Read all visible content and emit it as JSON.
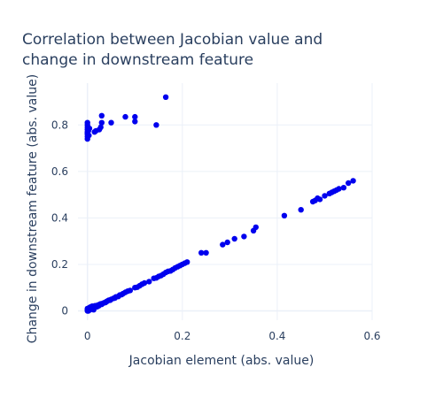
{
  "chart_data": {
    "type": "scatter",
    "title_lines": [
      "Correlation between Jacobian value and",
      "change in downstream feature"
    ],
    "xlabel": "Jacobian element (abs. value)",
    "ylabel": "Change in downstream feature (abs. value)",
    "xlim": [
      -0.02,
      0.6
    ],
    "ylim": [
      -0.04,
      0.98
    ],
    "xticks": [
      0,
      0.2,
      0.4,
      0.6
    ],
    "xtick_labels": [
      "0",
      "0.2",
      "0.4",
      "0.6"
    ],
    "yticks": [
      0,
      0.2,
      0.4,
      0.6,
      0.8
    ],
    "ytick_labels": [
      "0",
      "0.2",
      "0.4",
      "0.6",
      "0.8"
    ],
    "grid": true,
    "marker_color": "#0000ee",
    "grid_color": "#ebf0f8",
    "points": [
      [
        0.0,
        0.0
      ],
      [
        0.0,
        0.005
      ],
      [
        0.0,
        0.01
      ],
      [
        0.002,
        0.0
      ],
      [
        0.003,
        0.012
      ],
      [
        0.005,
        0.004
      ],
      [
        0.005,
        0.015
      ],
      [
        0.007,
        0.008
      ],
      [
        0.008,
        0.018
      ],
      [
        0.01,
        0.01
      ],
      [
        0.01,
        0.02
      ],
      [
        0.012,
        0.014
      ],
      [
        0.013,
        0.005
      ],
      [
        0.015,
        0.016
      ],
      [
        0.016,
        0.022
      ],
      [
        0.018,
        0.02
      ],
      [
        0.02,
        0.018
      ],
      [
        0.022,
        0.025
      ],
      [
        0.024,
        0.022
      ],
      [
        0.026,
        0.028
      ],
      [
        0.028,
        0.03
      ],
      [
        0.03,
        0.028
      ],
      [
        0.032,
        0.032
      ],
      [
        0.035,
        0.035
      ],
      [
        0.038,
        0.036
      ],
      [
        0.04,
        0.04
      ],
      [
        0.042,
        0.042
      ],
      [
        0.045,
        0.046
      ],
      [
        0.048,
        0.046
      ],
      [
        0.05,
        0.05
      ],
      [
        0.055,
        0.054
      ],
      [
        0.058,
        0.056
      ],
      [
        0.06,
        0.06
      ],
      [
        0.065,
        0.062
      ],
      [
        0.068,
        0.068
      ],
      [
        0.072,
        0.07
      ],
      [
        0.075,
        0.074
      ],
      [
        0.08,
        0.08
      ],
      [
        0.085,
        0.085
      ],
      [
        0.09,
        0.088
      ],
      [
        0.1,
        0.1
      ],
      [
        0.105,
        0.102
      ],
      [
        0.11,
        0.108
      ],
      [
        0.115,
        0.115
      ],
      [
        0.12,
        0.12
      ],
      [
        0.13,
        0.126
      ],
      [
        0.14,
        0.14
      ],
      [
        0.145,
        0.142
      ],
      [
        0.15,
        0.148
      ],
      [
        0.155,
        0.152
      ],
      [
        0.16,
        0.158
      ],
      [
        0.165,
        0.165
      ],
      [
        0.17,
        0.17
      ],
      [
        0.175,
        0.172
      ],
      [
        0.18,
        0.178
      ],
      [
        0.185,
        0.185
      ],
      [
        0.19,
        0.19
      ],
      [
        0.195,
        0.195
      ],
      [
        0.2,
        0.2
      ],
      [
        0.205,
        0.205
      ],
      [
        0.21,
        0.21
      ],
      [
        0.24,
        0.25
      ],
      [
        0.25,
        0.25
      ],
      [
        0.285,
        0.285
      ],
      [
        0.295,
        0.295
      ],
      [
        0.31,
        0.31
      ],
      [
        0.33,
        0.32
      ],
      [
        0.35,
        0.345
      ],
      [
        0.355,
        0.36
      ],
      [
        0.415,
        0.41
      ],
      [
        0.45,
        0.435
      ],
      [
        0.475,
        0.47
      ],
      [
        0.48,
        0.475
      ],
      [
        0.485,
        0.485
      ],
      [
        0.49,
        0.48
      ],
      [
        0.5,
        0.495
      ],
      [
        0.51,
        0.505
      ],
      [
        0.515,
        0.51
      ],
      [
        0.52,
        0.515
      ],
      [
        0.525,
        0.52
      ],
      [
        0.53,
        0.525
      ],
      [
        0.54,
        0.53
      ],
      [
        0.55,
        0.55
      ],
      [
        0.56,
        0.56
      ],
      [
        0.0,
        0.74
      ],
      [
        0.0,
        0.75
      ],
      [
        0.0,
        0.76
      ],
      [
        0.0,
        0.765
      ],
      [
        0.0,
        0.77
      ],
      [
        0.0,
        0.78
      ],
      [
        0.0,
        0.79
      ],
      [
        0.0,
        0.8
      ],
      [
        0.0,
        0.81
      ],
      [
        0.002,
        0.775
      ],
      [
        0.003,
        0.755
      ],
      [
        0.004,
        0.785
      ],
      [
        0.015,
        0.77
      ],
      [
        0.018,
        0.775
      ],
      [
        0.025,
        0.78
      ],
      [
        0.028,
        0.79
      ],
      [
        0.03,
        0.81
      ],
      [
        0.03,
        0.84
      ],
      [
        0.05,
        0.81
      ],
      [
        0.08,
        0.835
      ],
      [
        0.1,
        0.835
      ],
      [
        0.1,
        0.815
      ],
      [
        0.145,
        0.8
      ],
      [
        0.165,
        0.92
      ]
    ]
  }
}
